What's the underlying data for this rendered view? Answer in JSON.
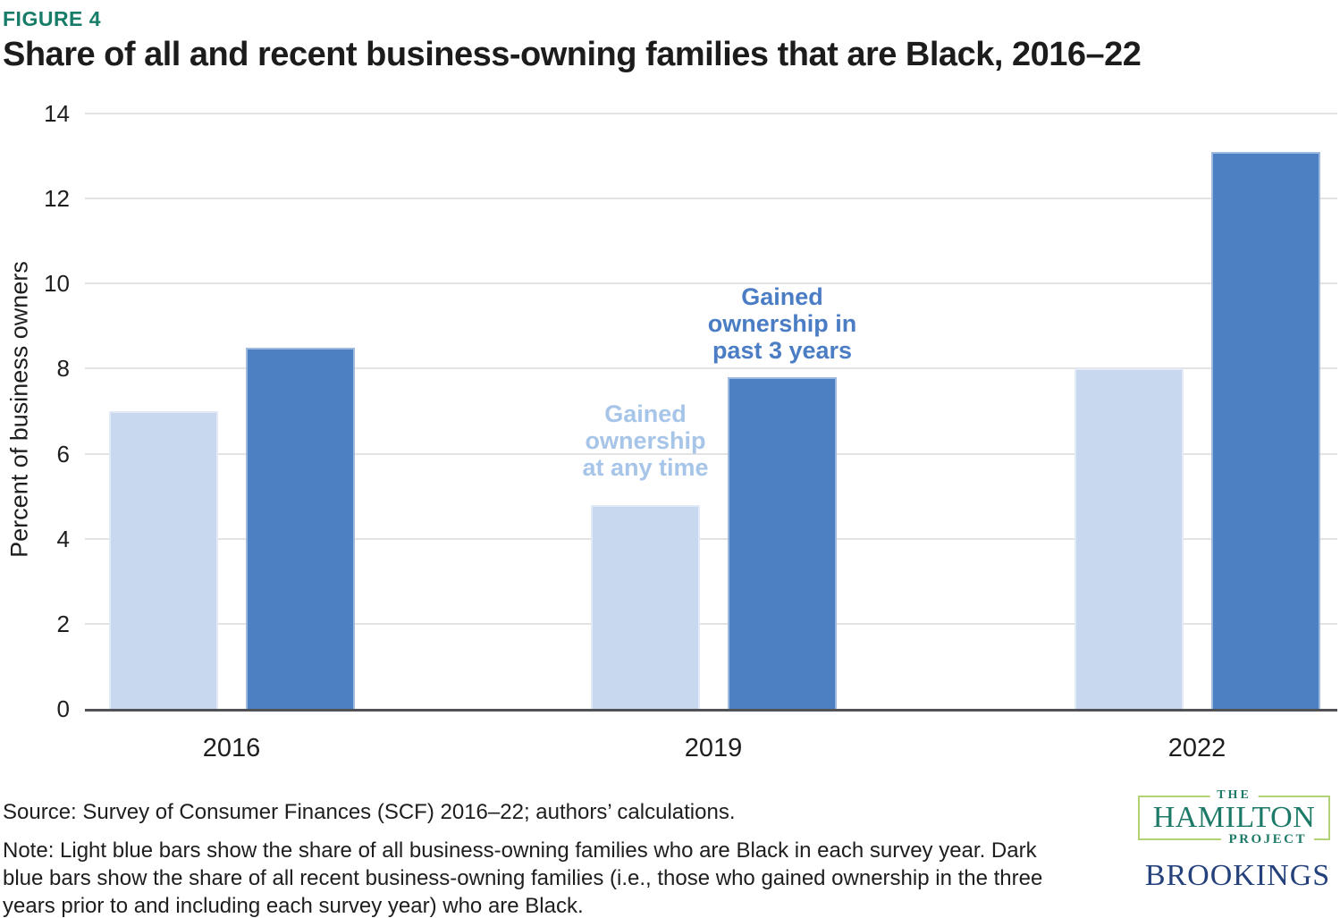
{
  "figure": {
    "label": "FIGURE 4",
    "title": "Share of all and recent business-owning families that are Black, 2016–22"
  },
  "chart_data": {
    "type": "bar",
    "title": "Share of all and recent business-owning families that are Black, 2016–22",
    "categories": [
      "2016",
      "2019",
      "2022"
    ],
    "series": [
      {
        "name": "Gained ownership at any time",
        "color": "#c8d9ef",
        "values": [
          7.0,
          4.8,
          8.0
        ]
      },
      {
        "name": "Gained ownership in past 3 years",
        "color": "#4d80c3",
        "values": [
          8.5,
          7.8,
          13.1
        ]
      }
    ],
    "xlabel": "",
    "ylabel": "Percent of business owners",
    "ylim": [
      0,
      14
    ],
    "yticks": [
      0,
      2,
      4,
      6,
      8,
      10,
      12,
      14
    ],
    "grid": true,
    "legend_position": "text annotations above bars in 2019 group",
    "annotations": {
      "light": "Gained\nownership\nat any time",
      "light_color": "#a6c5e8",
      "dark": "Gained\nownership in\npast 3 years",
      "dark_color": "#4a7dc4"
    }
  },
  "footer": {
    "source": "Source: Survey of Consumer Finances (SCF) 2016–22; authors’ calculations.",
    "note": "Note: Light blue bars show the share of all business-owning families who are Black in each survey year. Dark\nblue bars show the share of all recent business-owning families (i.e., those who gained ownership in the three\nyears prior to and including each survey year) who are Black."
  },
  "logos": {
    "hamilton_the": "THE",
    "hamilton_name": "HAMILTON",
    "hamilton_project": "PROJECT",
    "brookings": "BROOKINGS"
  },
  "colors": {
    "figure_label_teal": "#177c68",
    "hamilton_teal": "#1d7a68",
    "hamilton_box_green": "#b3d176",
    "brookings_navy": "#25417c",
    "light_bar_blue": "#c8d9ef",
    "dark_bar_blue": "#4d80c3",
    "axis_line": "#515256",
    "gridline": "#e3e3e3",
    "text": "#1e1e1e"
  }
}
